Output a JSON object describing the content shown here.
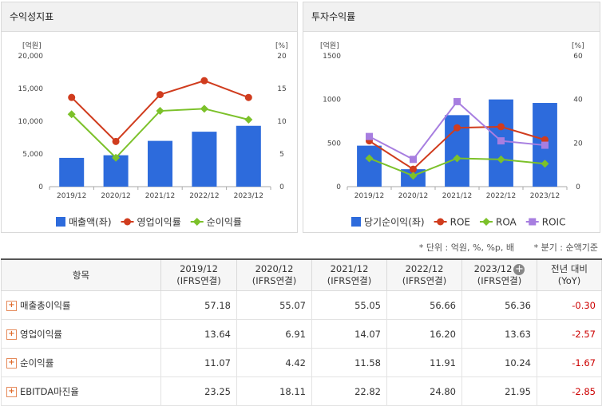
{
  "left_panel": {
    "title": "수익성지표"
  },
  "right_panel": {
    "title": "투자수익률"
  },
  "chart_data": [
    {
      "type": "bar",
      "categories": [
        "2019/12",
        "2020/12",
        "2021/12",
        "2022/12",
        "2023/12"
      ],
      "y_left_unit": "[억원]",
      "y_right_unit": "[%]",
      "ylim_left": [
        0,
        20000
      ],
      "ylim_right": [
        0,
        20
      ],
      "y_ticks_left": [
        "0",
        "5,000",
        "10,000",
        "15,000",
        "20,000"
      ],
      "y_ticks_right": [
        "0",
        "5",
        "10",
        "15",
        "20"
      ],
      "grid": false,
      "legend_position": "bottom",
      "series": [
        {
          "name": "매출액(좌)",
          "kind": "bar",
          "axis": "left",
          "color": "#2d6bdc",
          "values": [
            4400,
            4800,
            7000,
            8400,
            9300
          ]
        },
        {
          "name": "영업이익률",
          "kind": "line",
          "axis": "right",
          "marker": "circle",
          "color": "#d03c1e",
          "values": [
            13.64,
            6.91,
            14.07,
            16.2,
            13.63
          ]
        },
        {
          "name": "순이익률",
          "kind": "line",
          "axis": "right",
          "marker": "diamond",
          "color": "#7cc12a",
          "values": [
            11.07,
            4.42,
            11.58,
            11.91,
            10.24
          ]
        }
      ]
    },
    {
      "type": "bar",
      "categories": [
        "2019/12",
        "2020/12",
        "2021/12",
        "2022/12",
        "2023/12"
      ],
      "y_left_unit": "[억원]",
      "y_right_unit": "[%]",
      "ylim_left": [
        0,
        1500
      ],
      "ylim_right": [
        0,
        60
      ],
      "y_ticks_left": [
        "0",
        "500",
        "1000",
        "1500"
      ],
      "y_ticks_right": [
        "0",
        "20",
        "40",
        "60"
      ],
      "grid": false,
      "legend_position": "bottom",
      "series": [
        {
          "name": "당기순이익(좌)",
          "kind": "bar",
          "axis": "left",
          "color": "#2d6bdc",
          "values": [
            470,
            200,
            820,
            1000,
            960
          ]
        },
        {
          "name": "ROE",
          "kind": "line",
          "axis": "right",
          "marker": "circle",
          "color": "#d03c1e",
          "values": [
            21,
            8,
            27,
            27.5,
            21.5
          ]
        },
        {
          "name": "ROA",
          "kind": "line",
          "axis": "right",
          "marker": "diamond",
          "color": "#7cc12a",
          "values": [
            13,
            5,
            13,
            12.5,
            10.5
          ]
        },
        {
          "name": "ROIC",
          "kind": "line",
          "axis": "right",
          "marker": "square",
          "color": "#a77ee0",
          "values": [
            23,
            12.5,
            39,
            21,
            19
          ]
        }
      ]
    }
  ],
  "info": {
    "unit_note": "* 단위 : 억원, %, %p, 배",
    "period_note": "* 분기 : 순액기준"
  },
  "table": {
    "item_header": "항목",
    "columns": [
      {
        "period": "2019/12",
        "basis": "(IFRS연결)"
      },
      {
        "period": "2020/12",
        "basis": "(IFRS연결)"
      },
      {
        "period": "2021/12",
        "basis": "(IFRS연결)"
      },
      {
        "period": "2022/12",
        "basis": "(IFRS연결)"
      },
      {
        "period": "2023/12",
        "basis": "(IFRS연결)"
      }
    ],
    "yoy_header": "전년 대비",
    "yoy_sub": "(YoY)",
    "rows": [
      {
        "name": "매출총이익률",
        "values": [
          "57.18",
          "55.07",
          "55.05",
          "56.66",
          "56.36"
        ],
        "yoy": "-0.30"
      },
      {
        "name": "영업이익률",
        "values": [
          "13.64",
          "6.91",
          "14.07",
          "16.20",
          "13.63"
        ],
        "yoy": "-2.57"
      },
      {
        "name": "순이익률",
        "values": [
          "11.07",
          "4.42",
          "11.58",
          "11.91",
          "10.24"
        ],
        "yoy": "-1.67"
      },
      {
        "name": "EBITDA마진율",
        "values": [
          "23.25",
          "18.11",
          "22.82",
          "24.80",
          "21.95"
        ],
        "yoy": "-2.85"
      }
    ],
    "expand_icon": "plus-icon"
  }
}
